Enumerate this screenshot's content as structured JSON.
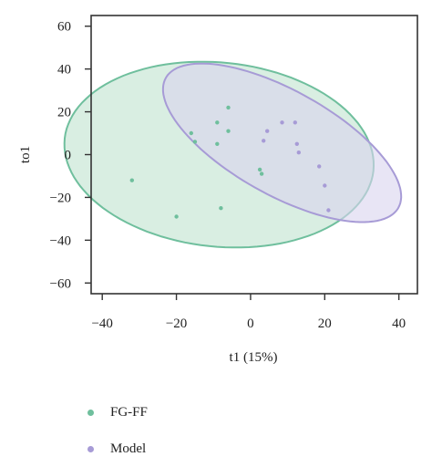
{
  "chart_data": {
    "type": "scatter",
    "xlabel": "t1 (15%)",
    "ylabel": "to1",
    "xlim": [
      -43,
      45
    ],
    "ylim": [
      -65,
      65
    ],
    "xticks": [
      -40,
      -20,
      0,
      20,
      40
    ],
    "yticks": [
      60,
      40,
      20,
      0,
      -20,
      -40,
      -60
    ],
    "xtick_labels": [
      "−40",
      "−20",
      "0",
      "20",
      "40"
    ],
    "ytick_labels": [
      "60",
      "40",
      "20",
      "0",
      "−20",
      "−40",
      "−60"
    ],
    "grid": false,
    "legend_position": "bottom",
    "series": [
      {
        "name": "FG-FF",
        "color": "#6fbf9d",
        "fill": "#bfe3cf",
        "points": [
          {
            "x": -32,
            "y": -12
          },
          {
            "x": -20,
            "y": -29
          },
          {
            "x": -16,
            "y": 10
          },
          {
            "x": -15,
            "y": 6
          },
          {
            "x": -9,
            "y": 15
          },
          {
            "x": -9,
            "y": 5
          },
          {
            "x": -8,
            "y": -25
          },
          {
            "x": -6,
            "y": 22
          },
          {
            "x": -6,
            "y": 11
          },
          {
            "x": 2.5,
            "y": -7
          },
          {
            "x": 3,
            "y": -9
          }
        ],
        "ellipse": {
          "cx": -8.5,
          "cy": 0,
          "rx": 40,
          "ry": 45,
          "angle": 35
        }
      },
      {
        "name": "Model",
        "color": "#a79bd6",
        "fill": "#d9d4ee",
        "points": [
          {
            "x": 3.5,
            "y": 6.5
          },
          {
            "x": 4.5,
            "y": 11
          },
          {
            "x": 8.5,
            "y": 15
          },
          {
            "x": 12,
            "y": 15
          },
          {
            "x": 12.5,
            "y": 5
          },
          {
            "x": 13,
            "y": 1
          },
          {
            "x": 18.5,
            "y": -5.5
          },
          {
            "x": 20,
            "y": -14.5
          },
          {
            "x": 21,
            "y": -26
          }
        ],
        "ellipse": {
          "cx": 8.5,
          "cy": 5.5,
          "rx": 45,
          "ry": 19.5,
          "angle": -51
        }
      }
    ]
  }
}
